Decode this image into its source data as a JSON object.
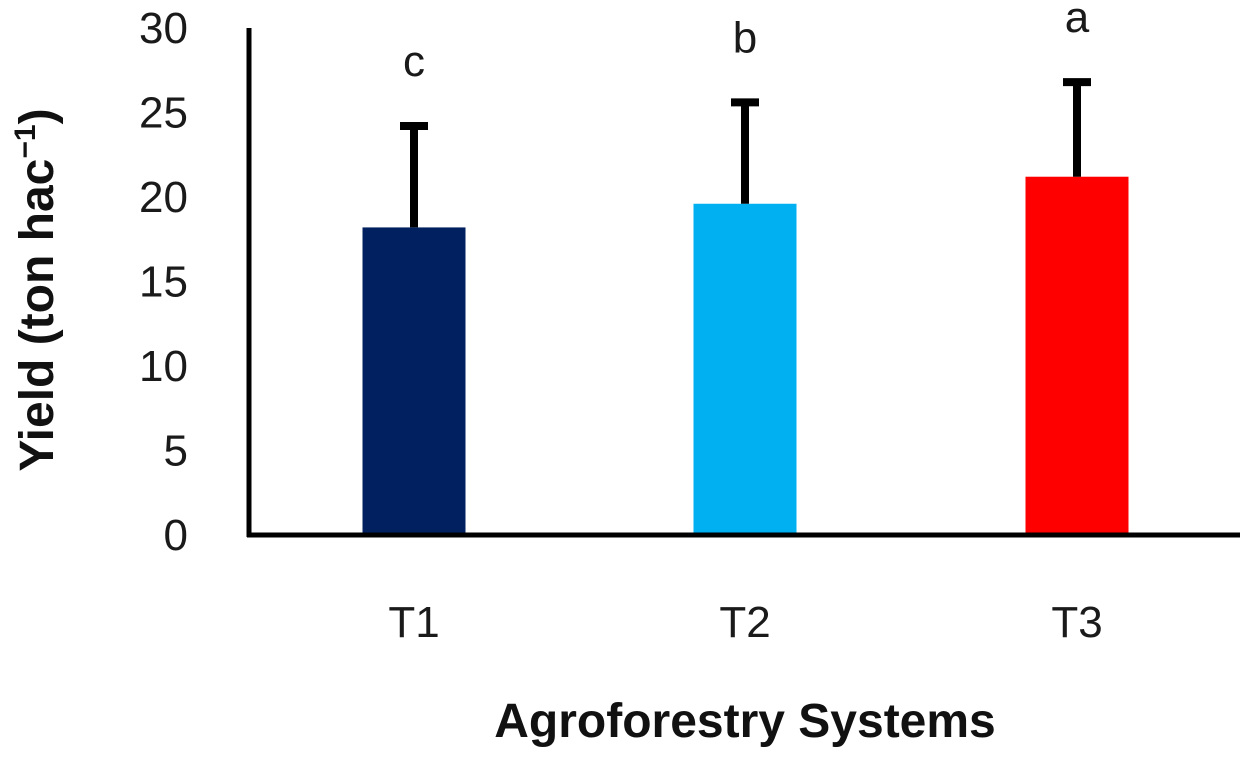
{
  "chart_data": {
    "type": "bar",
    "xlabel": "Agroforestry Systems",
    "ylabel": "Yield (ton hac",
    "ylabel_superscript": "−1",
    "ylabel_suffix": ")",
    "ylim": [
      0,
      30
    ],
    "yticks": [
      0,
      5,
      10,
      15,
      20,
      25,
      30
    ],
    "grid": false,
    "categories": [
      "T1",
      "T2",
      "T3"
    ],
    "values": [
      18.2,
      19.6,
      21.2
    ],
    "error": [
      6.0,
      6.0,
      5.6
    ],
    "significance": [
      "c",
      "b",
      "a"
    ],
    "colors": [
      "#002060",
      "#00b0f0",
      "#ff0000"
    ],
    "axis_color": "#000000"
  }
}
